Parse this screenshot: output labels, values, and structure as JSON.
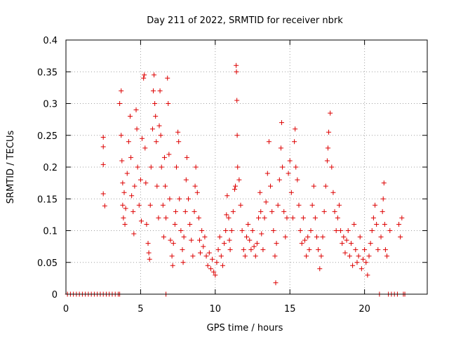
{
  "chart_data": {
    "type": "scatter",
    "title": "Day 211 of 2022, SRMTID for receiver nbrk",
    "xlabel": "GPS time / hours",
    "ylabel": "SRMTID / TECUs",
    "xlim": [
      0,
      24.2
    ],
    "ylim": [
      0,
      0.4
    ],
    "xticks": [
      0,
      5,
      10,
      15,
      20
    ],
    "xtick_labels": [
      "0",
      "5",
      "10",
      "15",
      "20"
    ],
    "yticks": [
      0,
      0.05,
      0.1,
      0.15,
      0.2,
      0.25,
      0.3,
      0.35,
      0.4
    ],
    "ytick_labels": [
      "0",
      "0.05",
      "0.1",
      "0.15",
      "0.2",
      "0.25",
      "0.3",
      "0.35",
      "0.4"
    ],
    "grid": true,
    "marker": "+",
    "color": "#dd0000",
    "series": [
      {
        "name": "SRMTID",
        "points": [
          [
            0.1,
            0
          ],
          [
            0.3,
            0
          ],
          [
            0.5,
            0
          ],
          [
            0.7,
            0
          ],
          [
            0.9,
            0
          ],
          [
            1.1,
            0
          ],
          [
            1.3,
            0
          ],
          [
            1.5,
            0
          ],
          [
            1.7,
            0
          ],
          [
            1.9,
            0
          ],
          [
            2.1,
            0
          ],
          [
            2.3,
            0
          ],
          [
            2.5,
            0
          ],
          [
            2.7,
            0
          ],
          [
            2.9,
            0
          ],
          [
            3.1,
            0
          ],
          [
            3.3,
            0
          ],
          [
            3.5,
            0
          ],
          [
            3.6,
            0
          ],
          [
            6.7,
            0
          ],
          [
            2.5,
            0.247
          ],
          [
            2.5,
            0.232
          ],
          [
            2.5,
            0.204
          ],
          [
            2.5,
            0.158
          ],
          [
            2.6,
            0.139
          ],
          [
            3.6,
            0.3
          ],
          [
            3.7,
            0.32
          ],
          [
            3.7,
            0.25
          ],
          [
            3.75,
            0.21
          ],
          [
            3.8,
            0.175
          ],
          [
            3.8,
            0.14
          ],
          [
            3.85,
            0.12
          ],
          [
            3.9,
            0.16
          ],
          [
            3.95,
            0.11
          ],
          [
            4.0,
            0.135
          ],
          [
            4.1,
            0.19
          ],
          [
            4.2,
            0.24
          ],
          [
            4.3,
            0.28
          ],
          [
            4.35,
            0.215
          ],
          [
            4.4,
            0.155
          ],
          [
            4.5,
            0.13
          ],
          [
            4.55,
            0.095
          ],
          [
            4.6,
            0.17
          ],
          [
            4.7,
            0.29
          ],
          [
            4.75,
            0.26
          ],
          [
            4.8,
            0.2
          ],
          [
            4.9,
            0.14
          ],
          [
            5.0,
            0.18
          ],
          [
            5.05,
            0.115
          ],
          [
            5.1,
            0.245
          ],
          [
            5.2,
            0.34
          ],
          [
            5.25,
            0.345
          ],
          [
            5.3,
            0.23
          ],
          [
            5.35,
            0.175
          ],
          [
            5.4,
            0.11
          ],
          [
            5.5,
            0.08
          ],
          [
            5.55,
            0.065
          ],
          [
            5.6,
            0.055
          ],
          [
            5.65,
            0.14
          ],
          [
            5.7,
            0.2
          ],
          [
            5.8,
            0.26
          ],
          [
            5.85,
            0.32
          ],
          [
            5.9,
            0.345
          ],
          [
            5.95,
            0.3
          ],
          [
            6.0,
            0.28
          ],
          [
            6.05,
            0.24
          ],
          [
            6.1,
            0.17
          ],
          [
            6.2,
            0.12
          ],
          [
            6.25,
            0.265
          ],
          [
            6.3,
            0.32
          ],
          [
            6.35,
            0.25
          ],
          [
            6.4,
            0.2
          ],
          [
            6.5,
            0.14
          ],
          [
            6.55,
            0.09
          ],
          [
            6.6,
            0.215
          ],
          [
            6.65,
            0.17
          ],
          [
            6.7,
            0.12
          ],
          [
            6.8,
            0.34
          ],
          [
            6.85,
            0.3
          ],
          [
            6.9,
            0.22
          ],
          [
            6.95,
            0.15
          ],
          [
            7.0,
            0.085
          ],
          [
            7.1,
            0.06
          ],
          [
            7.15,
            0.045
          ],
          [
            7.2,
            0.08
          ],
          [
            7.3,
            0.11
          ],
          [
            7.35,
            0.13
          ],
          [
            7.4,
            0.2
          ],
          [
            7.5,
            0.255
          ],
          [
            7.55,
            0.24
          ],
          [
            7.6,
            0.15
          ],
          [
            7.7,
            0.1
          ],
          [
            7.8,
            0.07
          ],
          [
            7.85,
            0.05
          ],
          [
            7.9,
            0.09
          ],
          [
            8.0,
            0.13
          ],
          [
            8.05,
            0.18
          ],
          [
            8.1,
            0.215
          ],
          [
            8.2,
            0.15
          ],
          [
            8.3,
            0.11
          ],
          [
            8.4,
            0.085
          ],
          [
            8.5,
            0.06
          ],
          [
            8.6,
            0.13
          ],
          [
            8.65,
            0.17
          ],
          [
            8.7,
            0.2
          ],
          [
            8.8,
            0.16
          ],
          [
            8.9,
            0.12
          ],
          [
            8.95,
            0.085
          ],
          [
            9.0,
            0.065
          ],
          [
            9.1,
            0.1
          ],
          [
            9.2,
            0.075
          ],
          [
            9.3,
            0.09
          ],
          [
            9.4,
            0.06
          ],
          [
            9.5,
            0.045
          ],
          [
            9.6,
            0.065
          ],
          [
            9.7,
            0.04
          ],
          [
            9.8,
            0.055
          ],
          [
            9.9,
            0.035
          ],
          [
            10.0,
            0.03
          ],
          [
            10.1,
            0.05
          ],
          [
            10.2,
            0.07
          ],
          [
            10.3,
            0.09
          ],
          [
            10.4,
            0.06
          ],
          [
            10.5,
            0.045
          ],
          [
            10.6,
            0.08
          ],
          [
            10.7,
            0.1
          ],
          [
            10.75,
            0.125
          ],
          [
            10.8,
            0.155
          ],
          [
            10.9,
            0.12
          ],
          [
            10.95,
            0.085
          ],
          [
            11.0,
            0.07
          ],
          [
            11.1,
            0.1
          ],
          [
            11.2,
            0.13
          ],
          [
            11.3,
            0.165
          ],
          [
            11.35,
            0.17
          ],
          [
            11.4,
            0.36
          ],
          [
            11.42,
            0.35
          ],
          [
            11.45,
            0.305
          ],
          [
            11.47,
            0.25
          ],
          [
            11.5,
            0.2
          ],
          [
            11.6,
            0.18
          ],
          [
            11.7,
            0.14
          ],
          [
            11.8,
            0.1
          ],
          [
            11.9,
            0.07
          ],
          [
            12.0,
            0.06
          ],
          [
            12.1,
            0.09
          ],
          [
            12.2,
            0.11
          ],
          [
            12.3,
            0.085
          ],
          [
            12.4,
            0.07
          ],
          [
            12.5,
            0.1
          ],
          [
            12.6,
            0.075
          ],
          [
            12.7,
            0.06
          ],
          [
            12.8,
            0.08
          ],
          [
            12.9,
            0.12
          ],
          [
            13.0,
            0.16
          ],
          [
            13.05,
            0.13
          ],
          [
            13.1,
            0.095
          ],
          [
            13.2,
            0.07
          ],
          [
            13.3,
            0.12
          ],
          [
            13.4,
            0.145
          ],
          [
            13.5,
            0.19
          ],
          [
            13.6,
            0.24
          ],
          [
            13.7,
            0.17
          ],
          [
            13.8,
            0.13
          ],
          [
            13.9,
            0.1
          ],
          [
            14.0,
            0.06
          ],
          [
            14.05,
            0.018
          ],
          [
            14.1,
            0.08
          ],
          [
            14.2,
            0.14
          ],
          [
            14.3,
            0.18
          ],
          [
            14.4,
            0.23
          ],
          [
            14.45,
            0.27
          ],
          [
            14.5,
            0.2
          ],
          [
            14.6,
            0.13
          ],
          [
            14.7,
            0.09
          ],
          [
            14.8,
            0.12
          ],
          [
            14.9,
            0.19
          ],
          [
            15.0,
            0.21
          ],
          [
            15.1,
            0.16
          ],
          [
            15.2,
            0.12
          ],
          [
            15.3,
            0.24
          ],
          [
            15.35,
            0.26
          ],
          [
            15.4,
            0.2
          ],
          [
            15.5,
            0.18
          ],
          [
            15.6,
            0.14
          ],
          [
            15.7,
            0.1
          ],
          [
            15.8,
            0.08
          ],
          [
            15.9,
            0.12
          ],
          [
            16.0,
            0.085
          ],
          [
            16.1,
            0.06
          ],
          [
            16.2,
            0.09
          ],
          [
            16.3,
            0.07
          ],
          [
            16.4,
            0.1
          ],
          [
            16.5,
            0.14
          ],
          [
            16.6,
            0.17
          ],
          [
            16.7,
            0.12
          ],
          [
            16.8,
            0.09
          ],
          [
            16.9,
            0.07
          ],
          [
            17.0,
            0.04
          ],
          [
            17.1,
            0.06
          ],
          [
            17.2,
            0.09
          ],
          [
            17.3,
            0.13
          ],
          [
            17.4,
            0.17
          ],
          [
            17.5,
            0.21
          ],
          [
            17.55,
            0.23
          ],
          [
            17.6,
            0.255
          ],
          [
            17.7,
            0.285
          ],
          [
            17.8,
            0.2
          ],
          [
            17.9,
            0.16
          ],
          [
            18.0,
            0.13
          ],
          [
            18.1,
            0.1
          ],
          [
            18.2,
            0.12
          ],
          [
            18.3,
            0.14
          ],
          [
            18.4,
            0.1
          ],
          [
            18.5,
            0.08
          ],
          [
            18.6,
            0.09
          ],
          [
            18.7,
            0.065
          ],
          [
            18.8,
            0.085
          ],
          [
            18.9,
            0.1
          ],
          [
            19.0,
            0.06
          ],
          [
            19.1,
            0.08
          ],
          [
            19.2,
            0.045
          ],
          [
            19.3,
            0.11
          ],
          [
            19.4,
            0.07
          ],
          [
            19.5,
            0.05
          ],
          [
            19.6,
            0.06
          ],
          [
            19.7,
            0.09
          ],
          [
            19.8,
            0.04
          ],
          [
            19.9,
            0.055
          ],
          [
            20.0,
            0.07
          ],
          [
            20.1,
            0.05
          ],
          [
            20.2,
            0.03
          ],
          [
            20.3,
            0.06
          ],
          [
            20.4,
            0.08
          ],
          [
            20.5,
            0.1
          ],
          [
            20.6,
            0.12
          ],
          [
            20.7,
            0.14
          ],
          [
            20.8,
            0.11
          ],
          [
            20.9,
            0.07
          ],
          [
            21.0,
            0
          ],
          [
            21.1,
            0.09
          ],
          [
            21.2,
            0.13
          ],
          [
            21.25,
            0.15
          ],
          [
            21.3,
            0.175
          ],
          [
            21.35,
            0.11
          ],
          [
            21.4,
            0.07
          ],
          [
            21.5,
            0.06
          ],
          [
            21.6,
            0
          ],
          [
            21.7,
            0.1
          ],
          [
            21.8,
            0
          ],
          [
            22.0,
            0
          ],
          [
            22.2,
            0
          ],
          [
            22.3,
            0.11
          ],
          [
            22.4,
            0.09
          ],
          [
            22.5,
            0.12
          ],
          [
            22.6,
            0
          ],
          [
            22.7,
            0
          ]
        ]
      }
    ]
  }
}
